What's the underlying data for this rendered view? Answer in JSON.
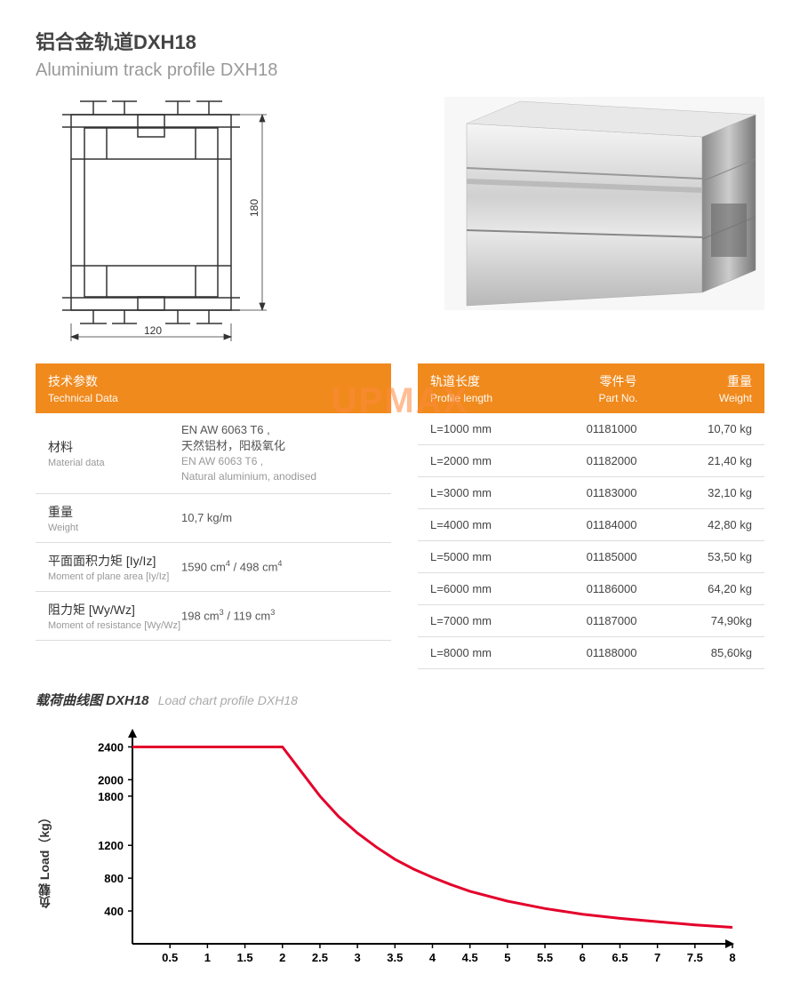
{
  "title": {
    "cn": "铝合金轨道DXH18",
    "en": "Aluminium track profile DXH18"
  },
  "drawing_dims": {
    "width_mm": "120",
    "height_mm": "180"
  },
  "watermark": "UPMAX",
  "tech_header": {
    "cn": "技术参数",
    "en": "Technical Data"
  },
  "tech_rows": [
    {
      "label_cn": "材料",
      "label_en": "Material data",
      "val_lines": [
        "EN AW 6063 T6 ,",
        "天然铝材，阳极氧化",
        "EN AW 6063 T6 ,",
        "Natural aluminium, anodised"
      ],
      "val_gray_from": 2
    },
    {
      "label_cn": "重量",
      "label_en": "Weight",
      "val_lines": [
        "10,7 kg/m"
      ]
    },
    {
      "label_cn": "平面面积力矩 [Iy/Iz]",
      "label_en": "Moment of plane area [Iy/Iz]",
      "val_html": "1590 cm<sup>4</sup> / 498 cm<sup>4</sup>"
    },
    {
      "label_cn": "阻力矩 [Wy/Wz]",
      "label_en": "Moment of resistance [Wy/Wz]",
      "val_html": "198 cm<sup>3</sup> / 119 cm<sup>3</sup>"
    }
  ],
  "length_header": {
    "c1_cn": "轨道长度",
    "c1_en": "Profile length",
    "c2_cn": "零件号",
    "c2_en": "Part No.",
    "c3_cn": "重量",
    "c3_en": "Weight"
  },
  "length_rows": [
    {
      "len": "L=1000 mm",
      "part": "01181000",
      "wt": "10,70 kg"
    },
    {
      "len": "L=2000 mm",
      "part": "01182000",
      "wt": "21,40 kg"
    },
    {
      "len": "L=3000 mm",
      "part": "01183000",
      "wt": "32,10 kg"
    },
    {
      "len": "L=4000 mm",
      "part": "01184000",
      "wt": "42,80 kg"
    },
    {
      "len": "L=5000 mm",
      "part": "01185000",
      "wt": "53,50 kg"
    },
    {
      "len": "L=6000 mm",
      "part": "01186000",
      "wt": "64,20 kg"
    },
    {
      "len": "L=7000 mm",
      "part": "01187000",
      "wt": "74,90kg"
    },
    {
      "len": "L=8000 mm",
      "part": "01188000",
      "wt": "85,60kg"
    }
  ],
  "chart_title": {
    "cn": "载荷曲线图 DXH18",
    "en": "Load chart profile DXH18"
  },
  "chart": {
    "type": "line",
    "ylabel": "负载 Load（kg）",
    "x_ticks": [
      "0.5",
      "1",
      "1.5",
      "2",
      "2.5",
      "3",
      "3.5",
      "4",
      "4.5",
      "5",
      "5.5",
      "6",
      "6.5",
      "7",
      "7.5",
      "8"
    ],
    "y_ticks": [
      400,
      800,
      1200,
      1800,
      2000,
      2400
    ],
    "ylim": [
      0,
      2600
    ],
    "xlim": [
      0,
      8
    ],
    "curve_points": [
      [
        0.0,
        2400
      ],
      [
        2.0,
        2400
      ],
      [
        2.25,
        2100
      ],
      [
        2.5,
        1800
      ],
      [
        2.75,
        1550
      ],
      [
        3.0,
        1350
      ],
      [
        3.25,
        1180
      ],
      [
        3.5,
        1030
      ],
      [
        3.75,
        910
      ],
      [
        4.0,
        810
      ],
      [
        4.25,
        720
      ],
      [
        4.5,
        640
      ],
      [
        5.0,
        520
      ],
      [
        5.5,
        430
      ],
      [
        6.0,
        360
      ],
      [
        6.5,
        310
      ],
      [
        7.0,
        270
      ],
      [
        7.5,
        230
      ],
      [
        8.0,
        200
      ]
    ],
    "curve_color": "#e4002b",
    "axis_color": "#000000",
    "bg": "#ffffff"
  }
}
